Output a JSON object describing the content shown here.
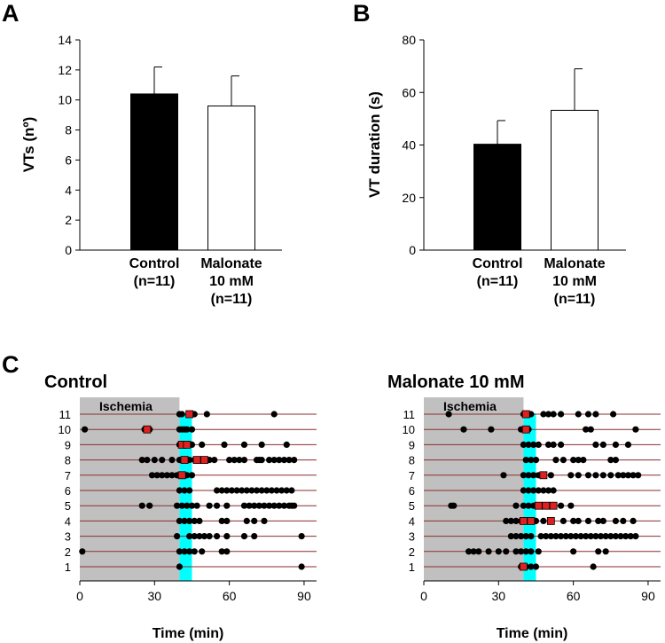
{
  "panel_labels": {
    "a": "A",
    "b": "B",
    "c": "C"
  },
  "colors": {
    "control_bar": "#000000",
    "malonate_bar": "#ffffff",
    "ischemia": "#c0c0c0",
    "reperfusion": "#00ffff",
    "row_line": "#8b2e2e",
    "dot": "#000000",
    "square": "#e02020"
  },
  "chart_data": [
    {
      "type": "bar",
      "id": "A",
      "categories": [
        "Control",
        "Malonate"
      ],
      "category_lines": [
        [
          "Control",
          "(n=11)"
        ],
        [
          "Malonate",
          "10 mM",
          "(n=11)"
        ]
      ],
      "values": [
        10.4,
        9.6
      ],
      "errors": [
        1.8,
        2.0
      ],
      "ylabel": "VTs (nº)",
      "ylim": [
        0,
        14
      ],
      "yticks": [
        "0",
        "2",
        "4",
        "6",
        "8",
        "10",
        "12",
        "14"
      ]
    },
    {
      "type": "bar",
      "id": "B",
      "categories": [
        "Control",
        "Malonate"
      ],
      "category_lines": [
        [
          "Control",
          "(n=11)"
        ],
        [
          "Malonate",
          "10 mM",
          "(n=11)"
        ]
      ],
      "values": [
        40.3,
        53.2
      ],
      "errors": [
        9.0,
        15.8
      ],
      "ylabel": "VT duration (s)",
      "ylim": [
        0,
        80
      ],
      "yticks": [
        "0",
        "20",
        "40",
        "60",
        "80"
      ]
    },
    {
      "type": "scatter",
      "id": "C-control",
      "title": "Control",
      "ischemia_label": "Ischemia",
      "ischemia": [
        0,
        40
      ],
      "reperfusion": [
        40,
        45
      ],
      "xlabel": "Time (min)",
      "xlim": [
        0,
        95
      ],
      "xticks": [
        "0",
        "30",
        "60",
        "90"
      ],
      "row_labels": [
        "1",
        "2",
        "3",
        "4",
        "5",
        "6",
        "7",
        "8",
        "9",
        "10",
        "11"
      ],
      "rows": [
        {
          "row": 11,
          "dots": [
            40,
            41,
            44,
            46,
            51,
            78
          ],
          "squares": [
            44
          ]
        },
        {
          "row": 10,
          "dots": [
            2,
            26,
            27,
            28,
            40,
            41,
            42,
            43,
            45
          ],
          "squares": [
            27
          ]
        },
        {
          "row": 9,
          "dots": [
            40,
            41,
            42,
            43,
            44,
            45,
            49,
            58,
            66,
            73,
            83
          ],
          "squares": [
            41,
            43
          ]
        },
        {
          "row": 8,
          "dots": [
            25,
            27,
            30,
            33,
            37,
            40,
            42,
            44,
            46,
            48,
            50,
            52,
            54,
            60,
            62,
            64,
            66,
            71,
            72,
            73,
            76,
            78,
            80,
            82,
            84,
            86
          ],
          "squares": [
            42,
            47,
            50
          ]
        },
        {
          "row": 7,
          "dots": [
            29,
            31,
            33,
            35,
            37,
            39,
            41,
            43,
            45
          ],
          "squares": [
            41
          ]
        },
        {
          "row": 6,
          "dots": [
            40,
            42,
            44,
            55,
            57,
            59,
            61,
            63,
            65,
            67,
            69,
            71,
            73,
            75,
            77,
            79,
            81,
            83,
            85
          ],
          "squares": []
        },
        {
          "row": 5,
          "dots": [
            25,
            28,
            39,
            41,
            43,
            45,
            47,
            52,
            55,
            59,
            66,
            68,
            70,
            72,
            74,
            76,
            78,
            80,
            82,
            84,
            85,
            86
          ],
          "squares": []
        },
        {
          "row": 4,
          "dots": [
            40,
            42,
            44,
            46,
            48,
            57,
            59,
            67,
            70,
            74
          ],
          "squares": []
        },
        {
          "row": 3,
          "dots": [
            39,
            44,
            46,
            48,
            50,
            52,
            55,
            59,
            66,
            70,
            89
          ],
          "squares": []
        },
        {
          "row": 2,
          "dots": [
            1,
            40,
            42,
            44,
            46,
            49,
            57,
            59
          ],
          "squares": []
        },
        {
          "row": 1,
          "dots": [
            40,
            89
          ],
          "squares": []
        }
      ]
    },
    {
      "type": "scatter",
      "id": "C-malonate",
      "title": "Malonate 10 mM",
      "ischemia_label": "Ischemia",
      "ischemia": [
        0,
        40
      ],
      "reperfusion": [
        40,
        45
      ],
      "xlabel": "Time (min)",
      "xlim": [
        0,
        95
      ],
      "xticks": [
        "0",
        "30",
        "60",
        "90"
      ],
      "row_labels": [
        "1",
        "2",
        "3",
        "4",
        "5",
        "6",
        "7",
        "8",
        "9",
        "10",
        "11"
      ],
      "rows": [
        {
          "row": 11,
          "dots": [
            10,
            40,
            41,
            42,
            43,
            48,
            50,
            52,
            55,
            62,
            66,
            69,
            76
          ],
          "squares": [
            41
          ]
        },
        {
          "row": 10,
          "dots": [
            16,
            27,
            39,
            40,
            41,
            42,
            65,
            67,
            85
          ],
          "squares": [
            41
          ]
        },
        {
          "row": 9,
          "dots": [
            40,
            42,
            44,
            46,
            50,
            52,
            55,
            69,
            72,
            77,
            82
          ],
          "squares": []
        },
        {
          "row": 8,
          "dots": [
            41,
            43,
            45,
            53,
            56,
            60,
            62,
            64,
            75,
            77
          ],
          "squares": []
        },
        {
          "row": 7,
          "dots": [
            32,
            40,
            42,
            44,
            46,
            48,
            51,
            59,
            62,
            66,
            69,
            72,
            75,
            78,
            80,
            82,
            84,
            86
          ],
          "squares": [
            48
          ]
        },
        {
          "row": 6,
          "dots": [
            40,
            42,
            44,
            46,
            48,
            50,
            52
          ],
          "squares": []
        },
        {
          "row": 5,
          "dots": [
            11,
            12,
            37,
            40,
            42,
            44,
            46,
            48,
            50,
            52,
            55,
            59
          ],
          "squares": [
            46,
            49,
            52
          ]
        },
        {
          "row": 4,
          "dots": [
            33,
            35,
            37,
            39,
            41,
            43,
            45,
            48,
            51,
            56,
            60,
            62,
            66,
            70,
            72,
            77,
            80,
            84
          ],
          "squares": [
            40,
            43,
            51
          ]
        },
        {
          "row": 3,
          "dots": [
            35,
            37,
            39,
            41,
            43,
            47,
            49,
            51,
            53,
            55,
            57,
            59,
            61,
            63,
            65,
            67,
            69,
            71,
            73,
            75,
            77,
            79,
            81,
            83,
            85
          ],
          "squares": []
        },
        {
          "row": 2,
          "dots": [
            18,
            20,
            22,
            26,
            30,
            33,
            37,
            39,
            41,
            43,
            46,
            60,
            70,
            73
          ],
          "squares": []
        },
        {
          "row": 1,
          "dots": [
            39,
            41,
            43,
            45,
            68
          ],
          "squares": [
            40
          ]
        }
      ]
    }
  ]
}
